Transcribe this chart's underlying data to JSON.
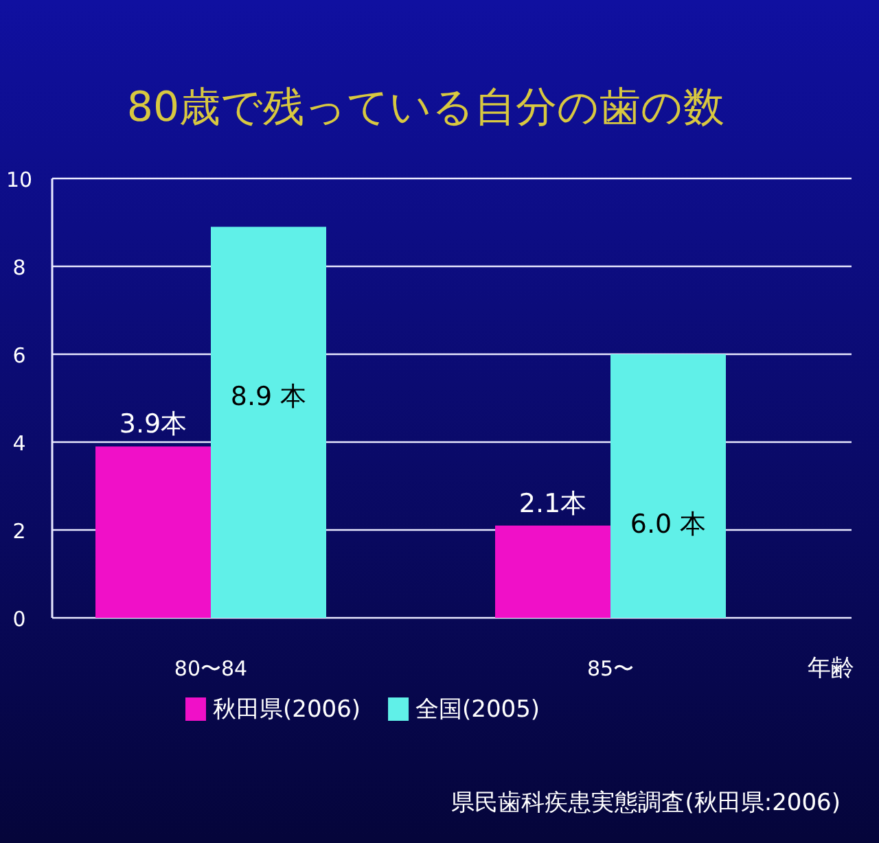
{
  "chart_data": {
    "type": "bar",
    "title": "80歳で残っている自分の歯の数",
    "xlabel": "年齢",
    "categories": [
      "80〜84",
      "85〜"
    ],
    "series": [
      {
        "name": "秋田県(2006)",
        "color": "#f010c8",
        "values": [
          3.9,
          2.1
        ],
        "value_labels": [
          "3.9本",
          "2.1本"
        ]
      },
      {
        "name": "全国(2005)",
        "color": "#60f0e8",
        "values": [
          8.9,
          6.0
        ],
        "value_labels": [
          "8.9 本",
          "6.0 本"
        ]
      }
    ],
    "ylim": [
      0,
      10
    ],
    "yticks": [
      0,
      2,
      4,
      6,
      8,
      10
    ],
    "grid": "y",
    "legend": "bottom",
    "annotations": [
      "県民歯科疾患実態調査(秋田県:2006)"
    ]
  }
}
